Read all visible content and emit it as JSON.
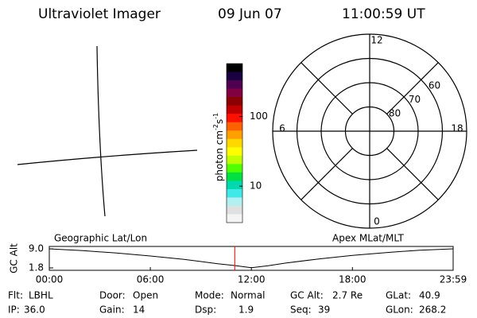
{
  "header": {
    "title": "Ultraviolet Imager",
    "date": "09 Jun 07",
    "time": "11:00:59 UT"
  },
  "colorbar": {
    "label_parts": [
      "photon cm",
      "-2",
      "s",
      "-1"
    ],
    "log": true,
    "lim": [
      3,
      575
    ],
    "ticks": [
      10,
      100
    ],
    "colors": [
      "#000000",
      "#1a0040",
      "#500050",
      "#800040",
      "#8b0000",
      "#c00000",
      "#ff1000",
      "#ff6000",
      "#ffa000",
      "#ffd800",
      "#ffff00",
      "#c0ff00",
      "#50ff00",
      "#00e040",
      "#00d8b0",
      "#40e8e8",
      "#b0f0f0",
      "#e0e0e0",
      "#f4f4f4"
    ]
  },
  "polar": {
    "rlim": [
      90,
      50
    ],
    "rings": [
      60,
      70,
      80
    ],
    "mlt_labels": [
      12,
      18,
      6,
      0
    ]
  },
  "altitude_plot": {
    "ylabel": "GC Alt",
    "left_title": "Geographic Lat/Lon",
    "right_title": "Apex MLat/MLT",
    "xlim": [
      0,
      23.983
    ],
    "xticks": [
      {
        "value": 0,
        "label": "00:00"
      },
      {
        "value": 6,
        "label": "06:00"
      },
      {
        "value": 12,
        "label": "12:00"
      },
      {
        "value": 18,
        "label": "18:00"
      },
      {
        "value": 23.983,
        "label": "23:59"
      }
    ],
    "ylim": [
      0.9,
      9.9
    ],
    "yticks": [
      {
        "value": 9,
        "label": "9.0"
      },
      {
        "value": 1.8,
        "label": "1.8"
      }
    ],
    "hours": [
      0,
      2,
      4,
      6,
      8,
      10,
      11,
      12,
      13,
      14,
      16,
      18,
      20,
      22,
      23.983
    ],
    "values": [
      9.0,
      8.3,
      7.4,
      6.3,
      5.0,
      3.4,
      2.7,
      1.9,
      2.6,
      3.6,
      5.2,
      6.5,
      7.6,
      8.5,
      9.0
    ],
    "line_color": "#000000",
    "marker_hour": 11.016,
    "marker_color": "#ff0000"
  },
  "status": [
    [
      {
        "label": "Flt:",
        "value": "LBHL"
      },
      {
        "label": "Door:",
        "value": "Open"
      },
      {
        "label": "Mode:",
        "value": "Normal"
      },
      {
        "label": "GC Alt:",
        "value": "2.7 Re"
      },
      {
        "label": "GLat:",
        "value": "40.9"
      }
    ],
    [
      {
        "label": "IP:",
        "value": "36.0"
      },
      {
        "label": "Gain:",
        "value": "14"
      },
      {
        "label": "Dsp:",
        "value": "1.9"
      },
      {
        "label": "Seq:",
        "value": "39"
      },
      {
        "label": "GLon:",
        "value": "268.2"
      }
    ]
  ]
}
